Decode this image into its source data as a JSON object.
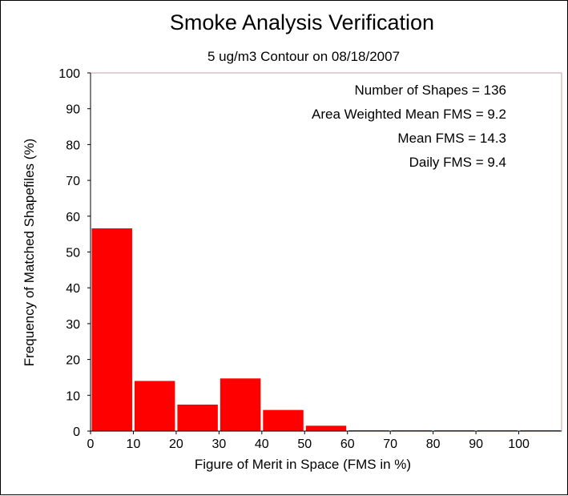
{
  "chart_data": {
    "type": "bar",
    "title": "Smoke Analysis Verification",
    "subtitle": "5 ug/m3 Contour on 08/18/2007",
    "xlabel": "Figure of Merit in Space (FMS in %)",
    "ylabel": "Frequency of Matched Shapefiles (%)",
    "xlim": [
      0,
      110
    ],
    "ylim": [
      0,
      100
    ],
    "x_ticks": [
      "0",
      "10",
      "20",
      "30",
      "40",
      "50",
      "60",
      "70",
      "80",
      "90",
      "100"
    ],
    "y_ticks": [
      "0",
      "10",
      "20",
      "30",
      "40",
      "50",
      "60",
      "70",
      "80",
      "90",
      "100"
    ],
    "bins": [
      {
        "start": 0,
        "end": 10,
        "value": 56.6
      },
      {
        "start": 10,
        "end": 20,
        "value": 14.0
      },
      {
        "start": 20,
        "end": 30,
        "value": 7.4
      },
      {
        "start": 30,
        "end": 40,
        "value": 14.7
      },
      {
        "start": 40,
        "end": 50,
        "value": 5.9
      },
      {
        "start": 50,
        "end": 60,
        "value": 1.5
      },
      {
        "start": 60,
        "end": 70,
        "value": 0
      },
      {
        "start": 70,
        "end": 80,
        "value": 0
      },
      {
        "start": 80,
        "end": 90,
        "value": 0
      },
      {
        "start": 90,
        "end": 100,
        "value": 0
      },
      {
        "start": 100,
        "end": 110,
        "value": 0
      }
    ],
    "annotations": [
      "Number of Shapes = 136",
      "Area Weighted Mean FMS = 9.2",
      "Mean FMS = 14.3",
      "Daily FMS = 9.4"
    ],
    "grid": false,
    "colors": {
      "bar": "#ff0000",
      "axis": "#000000",
      "border": "#c8a0a0"
    }
  }
}
